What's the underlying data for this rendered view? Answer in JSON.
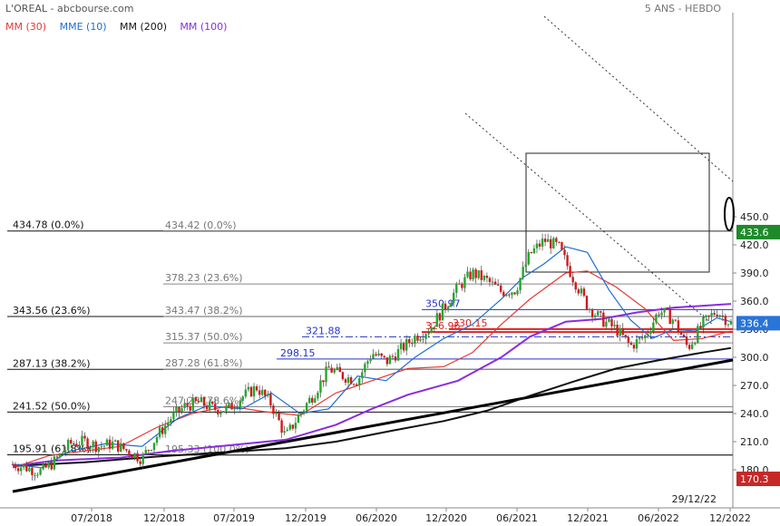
{
  "chart_data": {
    "type": "candlestick",
    "title": "L'OREAL - abcbourse.com",
    "period_label": "5 ANS - HEBDO",
    "end_date_label": "29/12/22",
    "yticks": [
      180,
      210,
      240,
      270,
      300,
      330,
      360,
      390,
      420,
      450
    ],
    "x_labels": [
      "07/2018",
      "12/2018",
      "07/2019",
      "12/2019",
      "06/2020",
      "12/2020",
      "06/2021",
      "12/2021",
      "06/2022",
      "12/2022"
    ],
    "legend": [
      {
        "label": "MM (30)",
        "color": "#e53935"
      },
      {
        "label": "MME (10)",
        "color": "#1e6fd0"
      },
      {
        "label": "MM (200)",
        "color": "#111111"
      },
      {
        "label": "MM (100)",
        "color": "#8a2be2"
      }
    ],
    "price_badges": [
      {
        "value": "433.6",
        "price": 433.6,
        "color": "#1e8a2a"
      },
      {
        "value": "336.4",
        "price": 336.4,
        "color": "#2874d8"
      },
      {
        "value": "170.3",
        "price": 170.3,
        "color": "#c62828"
      }
    ],
    "fib_left": [
      {
        "label": "434.78  (0.0%)",
        "price": 434.78
      },
      {
        "label": "343.56  (23.6%)",
        "price": 343.56
      },
      {
        "label": "287.13  (38.2%)",
        "price": 287.13
      },
      {
        "label": "241.52  (50.0%)",
        "price": 241.52
      },
      {
        "label": "195.91  (61.8%)",
        "price": 195.91
      }
    ],
    "fib_right": [
      {
        "label": "434.42  (0.0%)",
        "price": 434.42
      },
      {
        "label": "378.23  (23.6%)",
        "price": 378.23
      },
      {
        "label": "343.47  (38.2%)",
        "price": 343.47
      },
      {
        "label": "315.37  (50.0%)",
        "price": 315.37
      },
      {
        "label": "287.28  (61.8%)",
        "price": 287.28
      },
      {
        "label": "247.28  (78.6%)",
        "price": 247.28
      },
      {
        "label": "195.33  (100.0%)",
        "price": 195.33
      }
    ],
    "levels": [
      {
        "label": "350.97",
        "price": 350.97,
        "color": "#2233cc"
      },
      {
        "label": "330.15",
        "price": 330.15,
        "color": "#dd2222"
      },
      {
        "label": "326.96",
        "price": 326.96,
        "color": "#dd2222"
      },
      {
        "label": "321.88",
        "price": 321.88,
        "color": "#2233cc"
      },
      {
        "label": "298.15",
        "price": 298.15,
        "color": "#2233cc"
      }
    ],
    "ma_series": [
      {
        "key": "mm200",
        "color": "#111111",
        "points": [
          [
            0,
            184
          ],
          [
            0.1,
            188
          ],
          [
            0.2,
            194
          ],
          [
            0.3,
            199
          ],
          [
            0.38,
            203
          ],
          [
            0.45,
            210
          ],
          [
            0.53,
            222
          ],
          [
            0.6,
            232
          ],
          [
            0.66,
            243
          ],
          [
            0.72,
            259
          ],
          [
            0.78,
            274
          ],
          [
            0.84,
            288
          ],
          [
            0.9,
            297
          ],
          [
            0.96,
            305
          ],
          [
            1.0,
            310
          ]
        ]
      },
      {
        "key": "mm100",
        "color": "#8a2be2",
        "points": [
          [
            0,
            184
          ],
          [
            0.06,
            190
          ],
          [
            0.15,
            193
          ],
          [
            0.22,
            200
          ],
          [
            0.3,
            206
          ],
          [
            0.38,
            212
          ],
          [
            0.45,
            228
          ],
          [
            0.5,
            245
          ],
          [
            0.55,
            260
          ],
          [
            0.62,
            275
          ],
          [
            0.68,
            300
          ],
          [
            0.72,
            322
          ],
          [
            0.77,
            338
          ],
          [
            0.82,
            341
          ],
          [
            0.87,
            348
          ],
          [
            0.92,
            353
          ],
          [
            1.0,
            357
          ]
        ]
      },
      {
        "key": "mm30",
        "color": "#e53935",
        "points": [
          [
            0,
            182
          ],
          [
            0.05,
            195
          ],
          [
            0.1,
            200
          ],
          [
            0.15,
            205
          ],
          [
            0.2,
            225
          ],
          [
            0.25,
            240
          ],
          [
            0.3,
            248
          ],
          [
            0.35,
            242
          ],
          [
            0.4,
            238
          ],
          [
            0.45,
            262
          ],
          [
            0.5,
            275
          ],
          [
            0.55,
            288
          ],
          [
            0.6,
            290
          ],
          [
            0.64,
            305
          ],
          [
            0.68,
            335
          ],
          [
            0.72,
            362
          ],
          [
            0.77,
            390
          ],
          [
            0.8,
            392
          ],
          [
            0.84,
            375
          ],
          [
            0.88,
            352
          ],
          [
            0.92,
            318
          ],
          [
            0.96,
            320
          ],
          [
            1.0,
            328
          ]
        ]
      },
      {
        "key": "mme10",
        "color": "#1e6fd0",
        "points": [
          [
            0,
            186
          ],
          [
            0.04,
            182
          ],
          [
            0.08,
            200
          ],
          [
            0.13,
            208
          ],
          [
            0.18,
            205
          ],
          [
            0.23,
            235
          ],
          [
            0.27,
            248
          ],
          [
            0.32,
            245
          ],
          [
            0.36,
            262
          ],
          [
            0.4,
            240
          ],
          [
            0.44,
            245
          ],
          [
            0.48,
            280
          ],
          [
            0.52,
            275
          ],
          [
            0.56,
            300
          ],
          [
            0.6,
            320
          ],
          [
            0.64,
            335
          ],
          [
            0.68,
            362
          ],
          [
            0.71,
            385
          ],
          [
            0.74,
            400
          ],
          [
            0.77,
            418
          ],
          [
            0.8,
            412
          ],
          [
            0.83,
            372
          ],
          [
            0.86,
            340
          ],
          [
            0.89,
            320
          ],
          [
            0.92,
            330
          ],
          [
            0.95,
            328
          ],
          [
            0.98,
            342
          ],
          [
            1.0,
            338
          ]
        ]
      }
    ],
    "candles_path": [
      [
        0,
        186
      ],
      [
        0.02,
        182
      ],
      [
        0.04,
        178
      ],
      [
        0.06,
        190
      ],
      [
        0.08,
        208
      ],
      [
        0.1,
        210
      ],
      [
        0.12,
        205
      ],
      [
        0.14,
        208
      ],
      [
        0.16,
        200
      ],
      [
        0.18,
        192
      ],
      [
        0.2,
        215
      ],
      [
        0.22,
        235
      ],
      [
        0.24,
        248
      ],
      [
        0.26,
        252
      ],
      [
        0.28,
        245
      ],
      [
        0.3,
        245
      ],
      [
        0.32,
        258
      ],
      [
        0.34,
        268
      ],
      [
        0.36,
        250
      ],
      [
        0.38,
        215
      ],
      [
        0.4,
        240
      ],
      [
        0.42,
        262
      ],
      [
        0.44,
        288
      ],
      [
        0.46,
        280
      ],
      [
        0.48,
        275
      ],
      [
        0.5,
        305
      ],
      [
        0.52,
        295
      ],
      [
        0.54,
        308
      ],
      [
        0.56,
        322
      ],
      [
        0.58,
        330
      ],
      [
        0.6,
        352
      ],
      [
        0.62,
        375
      ],
      [
        0.64,
        390
      ],
      [
        0.66,
        382
      ],
      [
        0.68,
        370
      ],
      [
        0.7,
        372
      ],
      [
        0.72,
        410
      ],
      [
        0.74,
        425
      ],
      [
        0.76,
        418
      ],
      [
        0.78,
        385
      ],
      [
        0.8,
        355
      ],
      [
        0.82,
        340
      ],
      [
        0.84,
        330
      ],
      [
        0.86,
        312
      ],
      [
        0.88,
        322
      ],
      [
        0.9,
        350
      ],
      [
        0.92,
        340
      ],
      [
        0.94,
        310
      ],
      [
        0.96,
        335
      ],
      [
        0.98,
        350
      ],
      [
        1.0,
        336
      ]
    ]
  }
}
